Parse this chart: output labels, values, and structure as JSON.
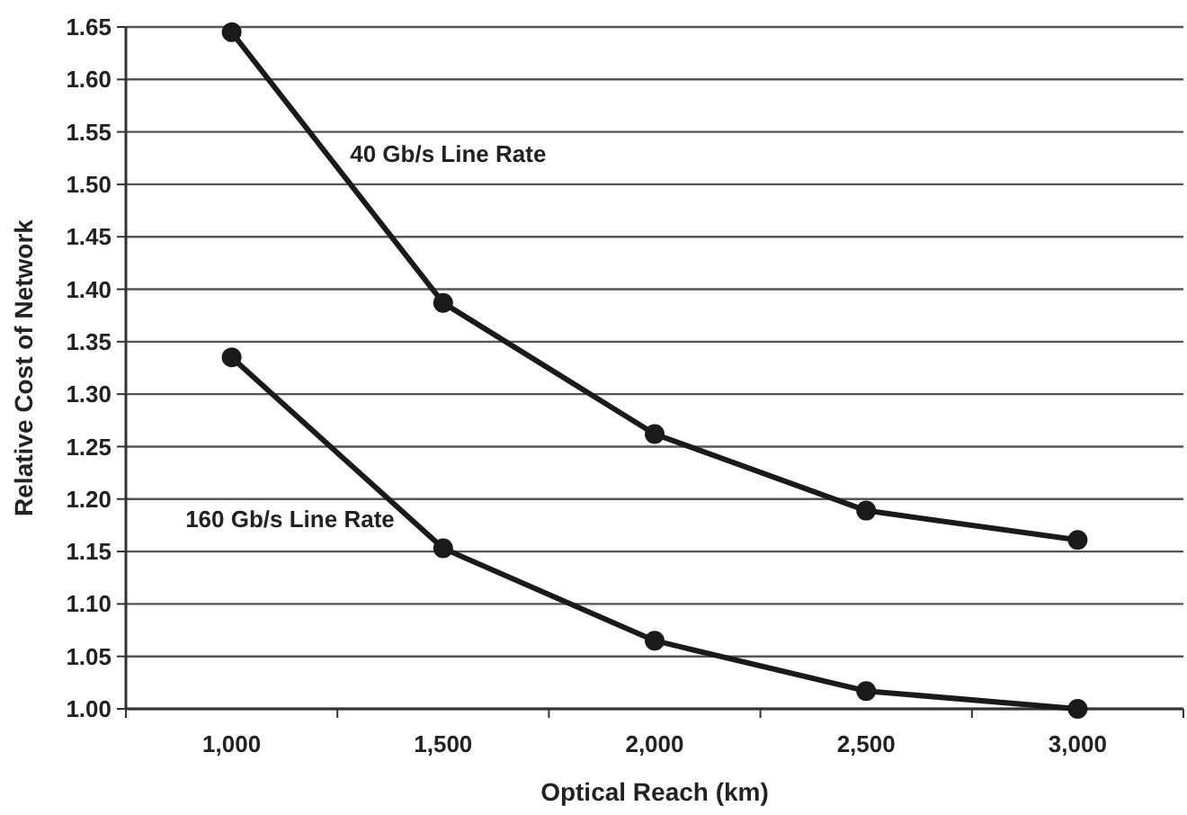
{
  "chart_data": {
    "type": "line",
    "xlabel": "Optical Reach (km)",
    "ylabel": "Relative Cost of Network",
    "categories": [
      "1,000",
      "1,500",
      "2,000",
      "2,500",
      "3,000"
    ],
    "series": [
      {
        "name": "40 Gb/s Line Rate",
        "color": "#1a1a1a",
        "values": [
          1.645,
          1.387,
          1.262,
          1.189,
          1.161
        ]
      },
      {
        "name": "160 Gb/s Line Rate",
        "color": "#1a1a1a",
        "values": [
          1.335,
          1.153,
          1.065,
          1.017,
          1.0
        ]
      }
    ],
    "ylim": [
      1.0,
      1.65
    ],
    "yticks": [
      {
        "value": 1.0,
        "label": "1.00"
      },
      {
        "value": 1.05,
        "label": "1.05"
      },
      {
        "value": 1.1,
        "label": "1.10"
      },
      {
        "value": 1.15,
        "label": "1.15"
      },
      {
        "value": 1.2,
        "label": "1.20"
      },
      {
        "value": 1.25,
        "label": "1.25"
      },
      {
        "value": 1.3,
        "label": "1.30"
      },
      {
        "value": 1.35,
        "label": "1.35"
      },
      {
        "value": 1.4,
        "label": "1.40"
      },
      {
        "value": 1.45,
        "label": "1.45"
      },
      {
        "value": 1.5,
        "label": "1.50"
      },
      {
        "value": 1.55,
        "label": "1.55"
      },
      {
        "value": 1.6,
        "label": "1.60"
      },
      {
        "value": 1.65,
        "label": "1.65"
      }
    ],
    "grid": "y",
    "marker": "circle",
    "line_style": "solid"
  }
}
